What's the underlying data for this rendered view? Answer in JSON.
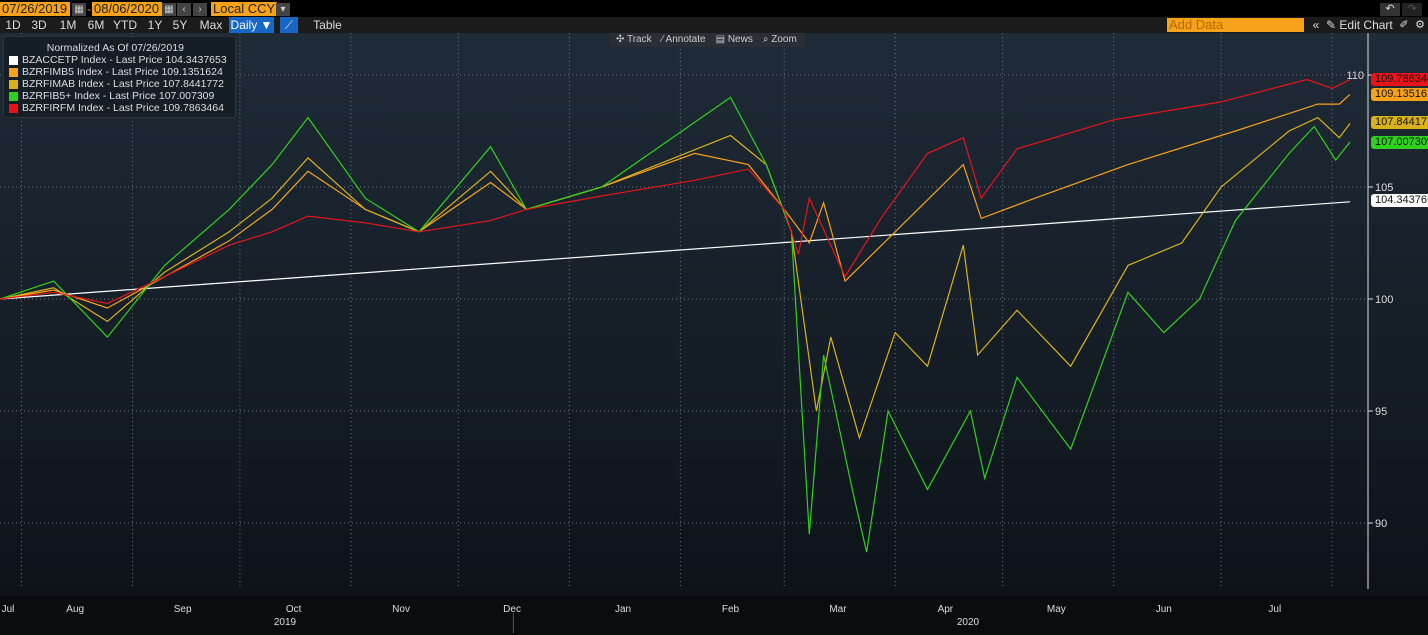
{
  "toolbar": {
    "start_date": "07/26/2019",
    "end_date": "08/06/2020",
    "currency": "Local CCY",
    "ranges": [
      "1D",
      "3D",
      "1M",
      "6M",
      "YTD",
      "1Y",
      "5Y",
      "Max"
    ],
    "frequency": "Daily ▼",
    "table": "Table",
    "add_data": "Add Data",
    "edit_chart": "Edit Chart"
  },
  "float_tools": [
    "Track",
    "Annotate",
    "News",
    "Zoom"
  ],
  "chart_data": {
    "type": "line",
    "legend_title": "Normalized As Of 07/26/2019",
    "legend_placement": "top-left",
    "ylim": [
      87,
      112
    ],
    "yticks": [
      "110",
      "105",
      "100",
      "95",
      "90"
    ],
    "xticks": [
      "Jul",
      "Aug",
      "Sep",
      "Oct",
      "Nov",
      "Dec",
      "Jan",
      "Feb",
      "Mar",
      "Apr",
      "May",
      "Jun",
      "Jul"
    ],
    "years": [
      "2019",
      "2020"
    ],
    "start": "2019-07-26",
    "end": "2020-08-06",
    "series": [
      {
        "name": "BZACCETP Index - Last Price",
        "last": "104.3437653",
        "color": "#ffffff",
        "points": [
          [
            "2019-07-26",
            100
          ],
          [
            "2020-08-06",
            104.34
          ]
        ]
      },
      {
        "name": "BZRFIMB5 Index - Last Price",
        "last": "109.1351624",
        "color": "#f7a21b",
        "points": [
          [
            "2019-07-26",
            100
          ],
          [
            "2019-08-10",
            100.4
          ],
          [
            "2019-08-25",
            99.6
          ],
          [
            "2019-09-10",
            101
          ],
          [
            "2019-09-28",
            102.6
          ],
          [
            "2019-10-10",
            104
          ],
          [
            "2019-10-20",
            105.7
          ],
          [
            "2019-11-05",
            104
          ],
          [
            "2019-11-20",
            103
          ],
          [
            "2019-12-10",
            105.2
          ],
          [
            "2019-12-20",
            104
          ],
          [
            "2020-01-10",
            105
          ],
          [
            "2020-02-05",
            106.5
          ],
          [
            "2020-02-20",
            106
          ],
          [
            "2020-03-01",
            104
          ],
          [
            "2020-03-08",
            102.5
          ],
          [
            "2020-03-12",
            104.3
          ],
          [
            "2020-03-18",
            100.8
          ],
          [
            "2020-04-01",
            103
          ],
          [
            "2020-04-20",
            106
          ],
          [
            "2020-04-25",
            103.6
          ],
          [
            "2020-05-10",
            104.5
          ],
          [
            "2020-06-05",
            106
          ],
          [
            "2020-07-05",
            107.5
          ],
          [
            "2020-07-28",
            108.7
          ],
          [
            "2020-08-03",
            108.7
          ],
          [
            "2020-08-06",
            109.14
          ]
        ]
      },
      {
        "name": "BZRFIMAB Index - Last Price",
        "last": "107.8441772",
        "color": "#d9b21a",
        "points": [
          [
            "2019-07-26",
            100
          ],
          [
            "2019-08-10",
            100.5
          ],
          [
            "2019-08-25",
            99
          ],
          [
            "2019-09-10",
            101.2
          ],
          [
            "2019-09-28",
            103
          ],
          [
            "2019-10-10",
            104.5
          ],
          [
            "2019-10-20",
            106.3
          ],
          [
            "2019-11-05",
            104
          ],
          [
            "2019-11-20",
            103
          ],
          [
            "2019-12-10",
            105.7
          ],
          [
            "2019-12-20",
            104
          ],
          [
            "2020-01-10",
            105
          ],
          [
            "2020-02-15",
            107.3
          ],
          [
            "2020-02-25",
            106
          ],
          [
            "2020-03-03",
            103
          ],
          [
            "2020-03-10",
            95
          ],
          [
            "2020-03-14",
            98.3
          ],
          [
            "2020-03-22",
            93.8
          ],
          [
            "2020-04-01",
            98.5
          ],
          [
            "2020-04-10",
            97
          ],
          [
            "2020-04-20",
            102.4
          ],
          [
            "2020-04-24",
            97.5
          ],
          [
            "2020-05-05",
            99.5
          ],
          [
            "2020-05-20",
            97
          ],
          [
            "2020-06-05",
            101.5
          ],
          [
            "2020-06-20",
            102.5
          ],
          [
            "2020-07-01",
            105
          ],
          [
            "2020-07-20",
            107.5
          ],
          [
            "2020-07-28",
            108.1
          ],
          [
            "2020-08-03",
            107.2
          ],
          [
            "2020-08-06",
            107.84
          ]
        ]
      },
      {
        "name": "BZRFIB5+ Index - Last Price",
        "last": "107.007309",
        "color": "#2fd11c",
        "points": [
          [
            "2019-07-26",
            100
          ],
          [
            "2019-08-10",
            100.8
          ],
          [
            "2019-08-25",
            98.3
          ],
          [
            "2019-09-10",
            101.5
          ],
          [
            "2019-09-28",
            104
          ],
          [
            "2019-10-10",
            106
          ],
          [
            "2019-10-20",
            108.1
          ],
          [
            "2019-11-05",
            104.5
          ],
          [
            "2019-11-20",
            103
          ],
          [
            "2019-12-10",
            106.8
          ],
          [
            "2019-12-20",
            104
          ],
          [
            "2020-01-10",
            105
          ],
          [
            "2020-02-15",
            109
          ],
          [
            "2020-02-25",
            106
          ],
          [
            "2020-03-03",
            103
          ],
          [
            "2020-03-08",
            89.5
          ],
          [
            "2020-03-12",
            97.5
          ],
          [
            "2020-03-20",
            91.5
          ],
          [
            "2020-03-24",
            88.7
          ],
          [
            "2020-03-30",
            95
          ],
          [
            "2020-04-10",
            91.5
          ],
          [
            "2020-04-22",
            95
          ],
          [
            "2020-04-26",
            92
          ],
          [
            "2020-05-05",
            96.5
          ],
          [
            "2020-05-20",
            93.3
          ],
          [
            "2020-06-05",
            100.3
          ],
          [
            "2020-06-15",
            98.5
          ],
          [
            "2020-06-25",
            100
          ],
          [
            "2020-07-05",
            103.5
          ],
          [
            "2020-07-20",
            106.5
          ],
          [
            "2020-07-27",
            107.7
          ],
          [
            "2020-08-02",
            106.2
          ],
          [
            "2020-08-06",
            107.01
          ]
        ]
      },
      {
        "name": "BZRFIRFM Index - Last Price",
        "last": "109.7863464",
        "color": "#e8141a",
        "points": [
          [
            "2019-07-26",
            100
          ],
          [
            "2019-08-10",
            100.3
          ],
          [
            "2019-08-25",
            99.8
          ],
          [
            "2019-09-10",
            101
          ],
          [
            "2019-09-28",
            102.4
          ],
          [
            "2019-10-10",
            103
          ],
          [
            "2019-10-20",
            103.7
          ],
          [
            "2019-11-05",
            103.4
          ],
          [
            "2019-11-20",
            103
          ],
          [
            "2019-12-10",
            103.5
          ],
          [
            "2019-12-20",
            104
          ],
          [
            "2020-01-10",
            104.6
          ],
          [
            "2020-02-05",
            105.3
          ],
          [
            "2020-02-20",
            105.8
          ],
          [
            "2020-03-01",
            104
          ],
          [
            "2020-03-05",
            102
          ],
          [
            "2020-03-08",
            104.5
          ],
          [
            "2020-03-18",
            101
          ],
          [
            "2020-03-28",
            103.6
          ],
          [
            "2020-04-10",
            106.5
          ],
          [
            "2020-04-20",
            107.2
          ],
          [
            "2020-04-25",
            104.5
          ],
          [
            "2020-05-05",
            106.7
          ],
          [
            "2020-06-01",
            108
          ],
          [
            "2020-07-01",
            108.8
          ],
          [
            "2020-07-25",
            109.8
          ],
          [
            "2020-08-01",
            109.4
          ],
          [
            "2020-08-06",
            109.79
          ]
        ]
      }
    ]
  }
}
